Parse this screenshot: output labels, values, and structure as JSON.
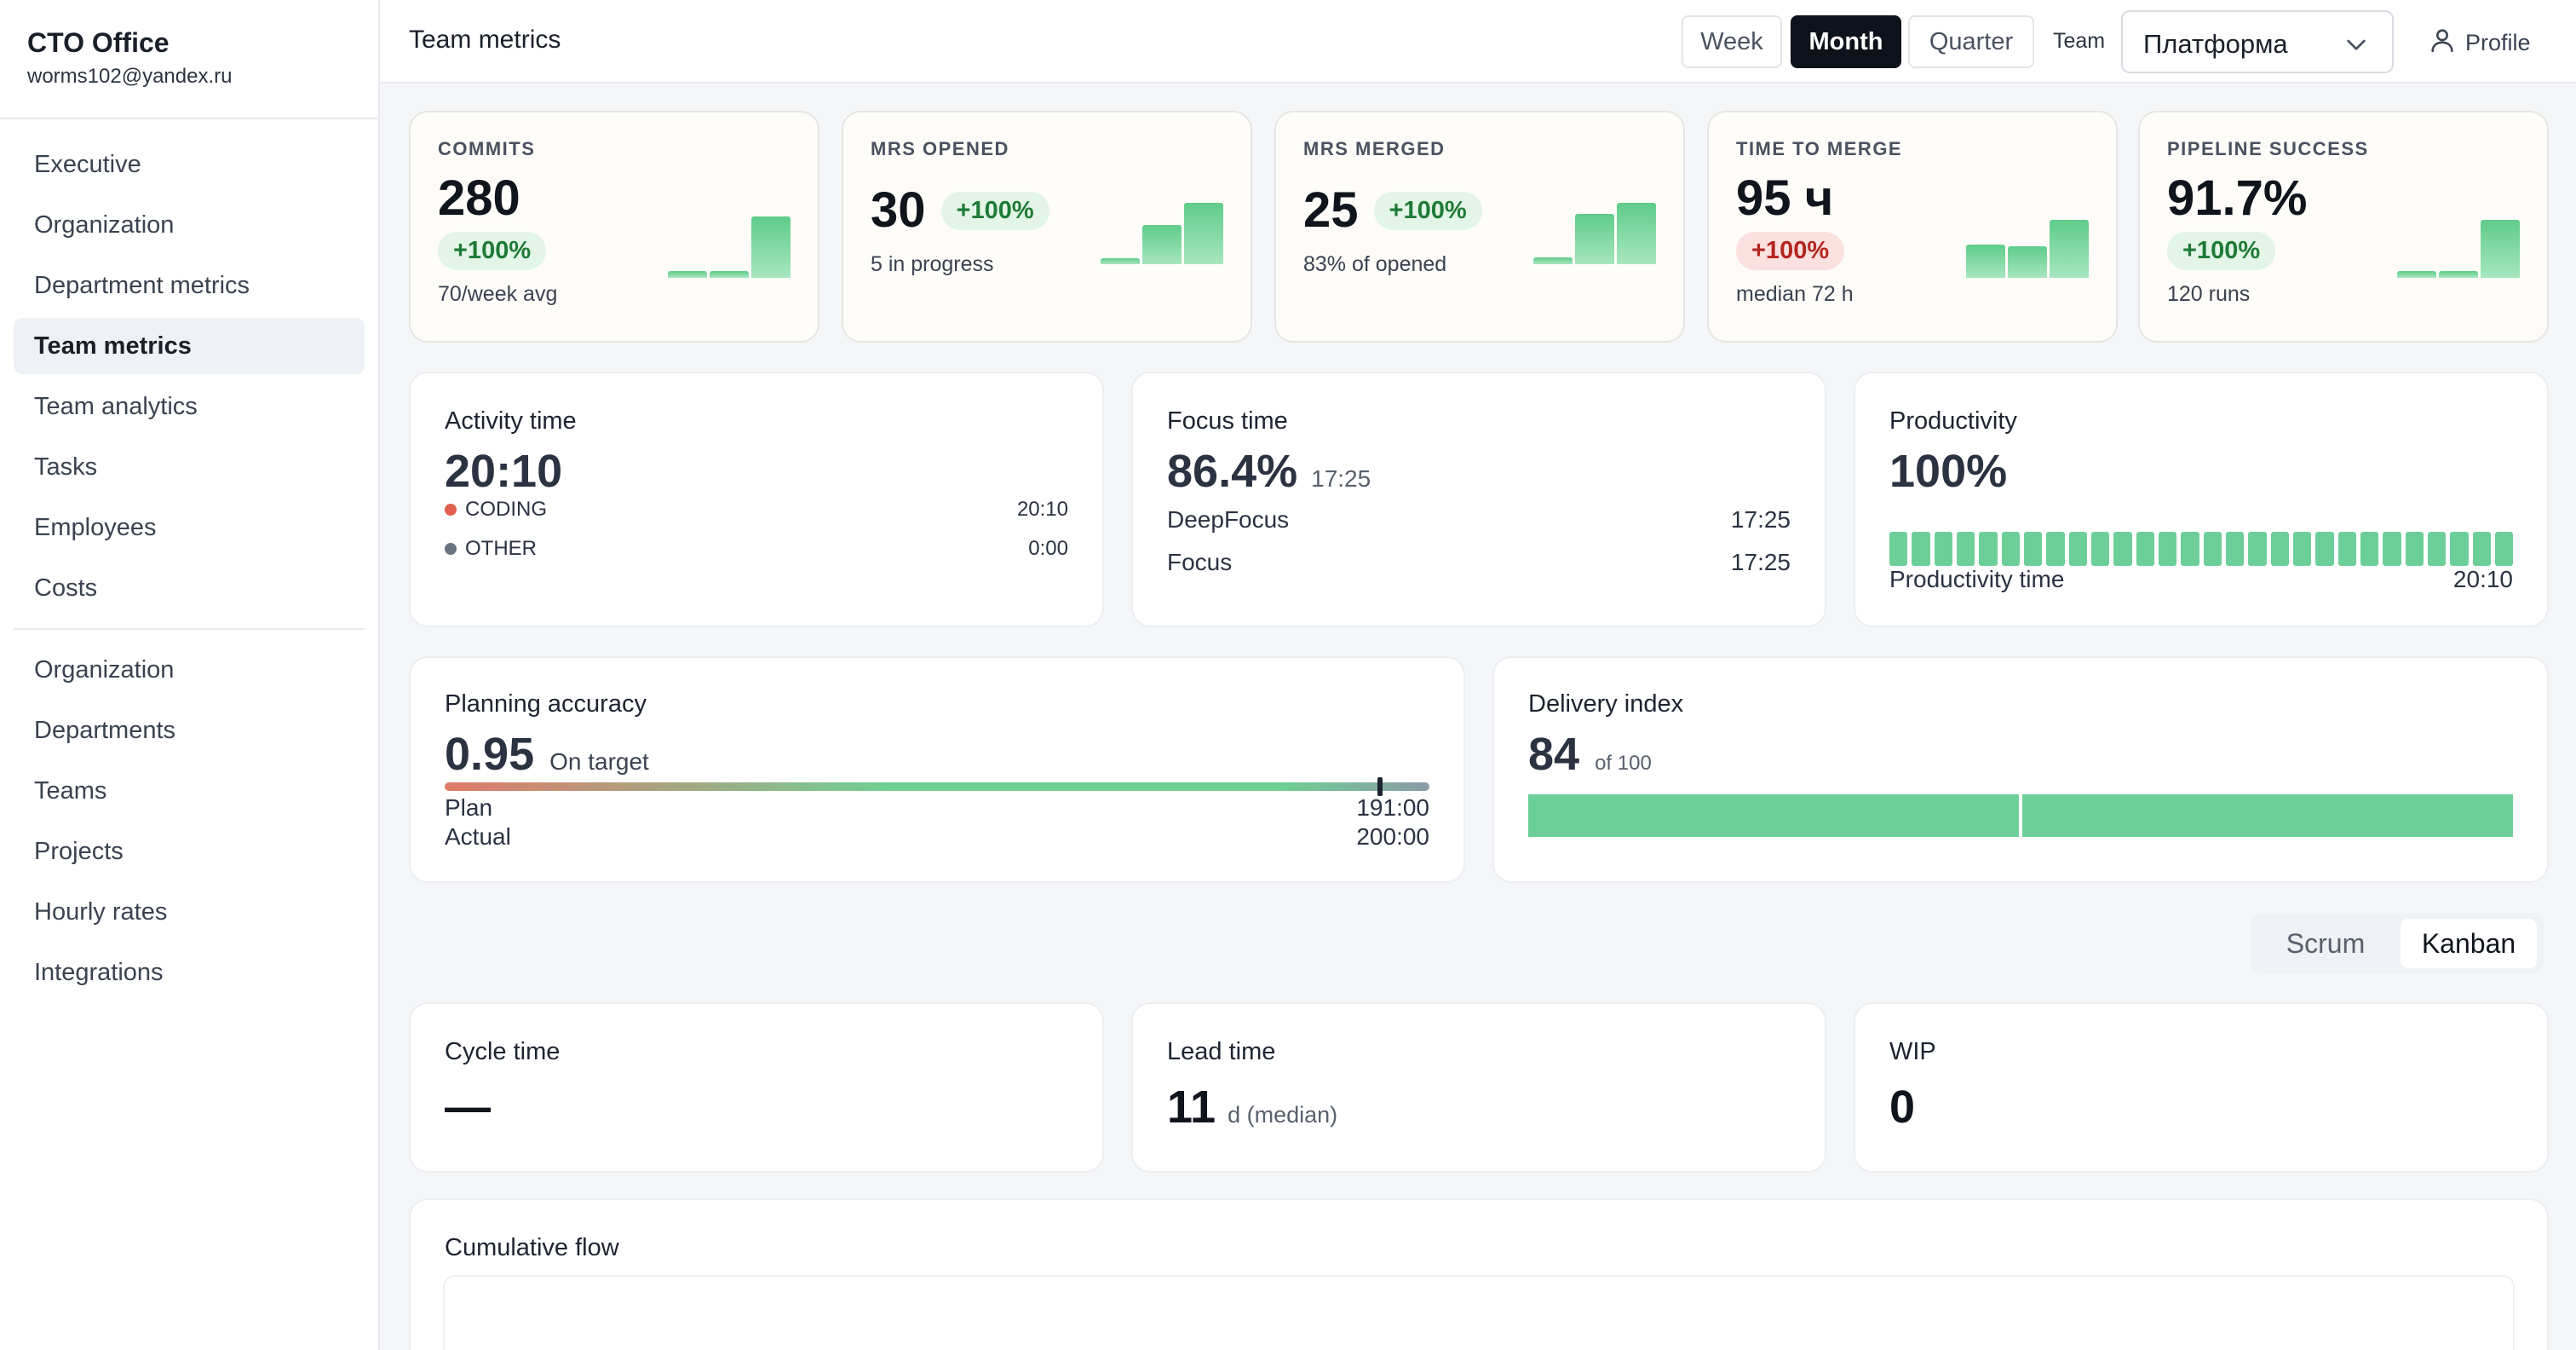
{
  "sidebar": {
    "brand_title": "CTO Office",
    "brand_email": "worms102@yandex.ru",
    "items_top": [
      "Executive",
      "Organization",
      "Department metrics",
      "Team metrics",
      "Team analytics",
      "Tasks",
      "Employees",
      "Costs"
    ],
    "items_bottom": [
      "Organization",
      "Departments",
      "Teams",
      "Projects",
      "Hourly rates",
      "Integrations"
    ],
    "active": "Team metrics"
  },
  "header": {
    "title": "Team metrics",
    "periods": [
      "Week",
      "Month",
      "Quarter"
    ],
    "active_period": "Month",
    "team_label": "Team",
    "team_value": "Платформа",
    "profile_label": "Profile"
  },
  "kpis": {
    "commits": {
      "label": "COMMITS",
      "value": "280",
      "delta": "+100%",
      "sub": "70/week avg",
      "trend": [
        0.06,
        0.06,
        0.55
      ]
    },
    "mrs_opened": {
      "label": "MRS OPENED",
      "value": "30",
      "delta": "+100%",
      "sub": "5 in progress",
      "trend": [
        0.05,
        0.35,
        0.55
      ]
    },
    "mrs_merged": {
      "label": "MRS MERGED",
      "value": "25",
      "delta": "+100%",
      "sub": "83% of opened",
      "trend": [
        0.06,
        0.45,
        0.55
      ]
    },
    "time_to_merge": {
      "label": "TIME TO MERGE",
      "value": "95 ч",
      "delta": "+100%",
      "sub": "median 72 h",
      "trend": [
        0.3,
        0.28,
        0.52
      ]
    },
    "pipeline_success": {
      "label": "PIPELINE SUCCESS",
      "value": "91.7%",
      "delta": "+100%",
      "sub": "120 runs",
      "trend": [
        0.06,
        0.06,
        0.52
      ]
    }
  },
  "activity": {
    "title": "Activity time",
    "value": "20:10",
    "rows": [
      {
        "label": "CODING",
        "value": "20:10",
        "color": "#e0604e"
      },
      {
        "label": "OTHER",
        "value": "0:00",
        "color": "#6b7280"
      }
    ]
  },
  "focus": {
    "title": "Focus time",
    "value": "86.4%",
    "secondary": "17:25",
    "rows": [
      {
        "label": "DeepFocus",
        "value": "17:25"
      },
      {
        "label": "Focus",
        "value": "17:25"
      }
    ]
  },
  "productivity": {
    "title": "Productivity",
    "value": "100%",
    "segments": 28,
    "label": "Productivity time",
    "time": "20:10"
  },
  "planning": {
    "title": "Planning accuracy",
    "value": "0.95",
    "status": "On target",
    "marker": 0.95,
    "plan_label": "Plan",
    "plan_value": "191:00",
    "actual_label": "Actual",
    "actual_value": "200:00"
  },
  "delivery": {
    "title": "Delivery index",
    "value": "84",
    "suffix": "of 100"
  },
  "mode_switch": {
    "options": [
      "Scrum",
      "Kanban"
    ],
    "active": "Kanban"
  },
  "kanban": {
    "cycle": {
      "title": "Cycle time",
      "value": "—"
    },
    "lead": {
      "title": "Lead time",
      "value": "11",
      "unit": "d (median)"
    },
    "wip": {
      "title": "WIP",
      "value": "0"
    }
  },
  "cfd": {
    "title": "Cumulative flow"
  },
  "colors": {
    "accent_green": "#5fcc8a",
    "dark": "#0e121a",
    "red_badge": "#b3261e"
  }
}
